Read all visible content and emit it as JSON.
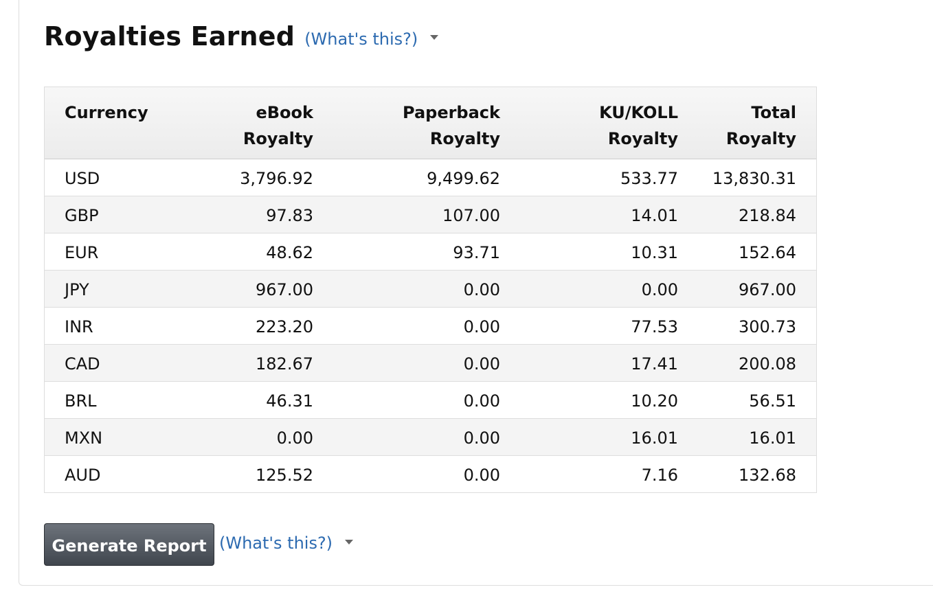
{
  "section": {
    "title": "Royalties Earned",
    "help_link": "(What's this?)"
  },
  "table": {
    "headers": [
      {
        "line1": "Currency",
        "line2": ""
      },
      {
        "line1": "eBook",
        "line2": "Royalty"
      },
      {
        "line1": "Paperback",
        "line2": "Royalty"
      },
      {
        "line1": "KU/KOLL",
        "line2": "Royalty"
      },
      {
        "line1": "Total",
        "line2": "Royalty"
      }
    ],
    "rows": [
      [
        "USD",
        "3,796.92",
        "9,499.62",
        "533.77",
        "13,830.31"
      ],
      [
        "GBP",
        "97.83",
        "107.00",
        "14.01",
        "218.84"
      ],
      [
        "EUR",
        "48.62",
        "93.71",
        "10.31",
        "152.64"
      ],
      [
        "JPY",
        "967.00",
        "0.00",
        "0.00",
        "967.00"
      ],
      [
        "INR",
        "223.20",
        "0.00",
        "77.53",
        "300.73"
      ],
      [
        "CAD",
        "182.67",
        "0.00",
        "17.41",
        "200.08"
      ],
      [
        "BRL",
        "46.31",
        "0.00",
        "10.20",
        "56.51"
      ],
      [
        "MXN",
        "0.00",
        "0.00",
        "16.01",
        "16.01"
      ],
      [
        "AUD",
        "125.52",
        "0.00",
        "7.16",
        "132.68"
      ]
    ]
  },
  "report": {
    "button_label": "Generate Report",
    "help_link": "(What's this?)"
  },
  "colors": {
    "link": "#2c6ab0",
    "button_bg": "#4f555d",
    "header_bg": "#f0f0f0",
    "row_alt_bg": "#f4f4f4"
  },
  "icons": {
    "dropdown": "caret-down-icon"
  }
}
